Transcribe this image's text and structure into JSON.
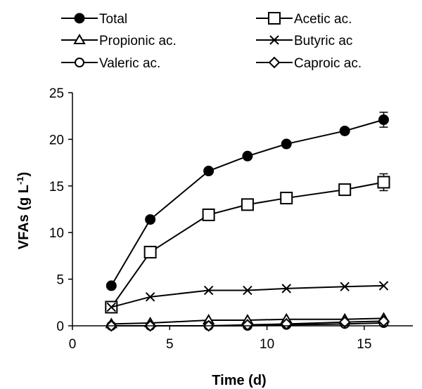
{
  "chart_data": {
    "type": "line",
    "title": "",
    "xlabel": "Time (d)",
    "ylabel_main": "VFAs (g L",
    "ylabel_sup": "-1",
    "ylabel_close": ")",
    "xlim": [
      0,
      17.5
    ],
    "ylim": [
      0,
      25
    ],
    "xticks": [
      "0",
      "5",
      "10",
      "15"
    ],
    "yticks": [
      "0",
      "5",
      "10",
      "15",
      "20",
      "25"
    ],
    "grid": false,
    "legend_position": "top",
    "series": [
      {
        "name": "Total",
        "marker": "filled-circle",
        "x": [
          2,
          4,
          7,
          9,
          11,
          14,
          16
        ],
        "y": [
          4.3,
          11.4,
          16.6,
          18.2,
          19.5,
          20.9,
          22.1
        ],
        "err": [
          0,
          0,
          0,
          0,
          0,
          0,
          0.8
        ]
      },
      {
        "name": "Acetic ac.",
        "marker": "square",
        "x": [
          2,
          4,
          7,
          9,
          11,
          14,
          16
        ],
        "y": [
          2.0,
          7.9,
          11.9,
          13.0,
          13.7,
          14.6,
          15.4
        ],
        "err": [
          0,
          0,
          0,
          0,
          0,
          0,
          0.9
        ]
      },
      {
        "name": "Propionic ac.",
        "marker": "triangle",
        "x": [
          2,
          4,
          7,
          9,
          11,
          14,
          16
        ],
        "y": [
          0.2,
          0.3,
          0.6,
          0.6,
          0.7,
          0.7,
          0.8
        ],
        "err": [
          0,
          0,
          0,
          0,
          0,
          0,
          0
        ]
      },
      {
        "name": "Butyric ac",
        "marker": "x",
        "x": [
          2,
          4,
          7,
          9,
          11,
          14,
          16
        ],
        "y": [
          2.0,
          3.1,
          3.8,
          3.8,
          4.0,
          4.2,
          4.3
        ],
        "err": [
          0,
          0,
          0,
          0,
          0,
          0,
          0
        ]
      },
      {
        "name": "Valeric ac.",
        "marker": "circle",
        "x": [
          2,
          4,
          7,
          9,
          11,
          14,
          16
        ],
        "y": [
          0.0,
          0.0,
          0.0,
          0.0,
          0.1,
          0.2,
          0.3
        ],
        "err": [
          0,
          0,
          0,
          0,
          0,
          0,
          0
        ]
      },
      {
        "name": "Caproic ac.",
        "marker": "diamond",
        "x": [
          2,
          4,
          7,
          9,
          11,
          14,
          16
        ],
        "y": [
          0.0,
          0.0,
          0.0,
          0.1,
          0.2,
          0.4,
          0.5
        ],
        "err": [
          0,
          0,
          0,
          0,
          0,
          0,
          0
        ]
      }
    ]
  }
}
